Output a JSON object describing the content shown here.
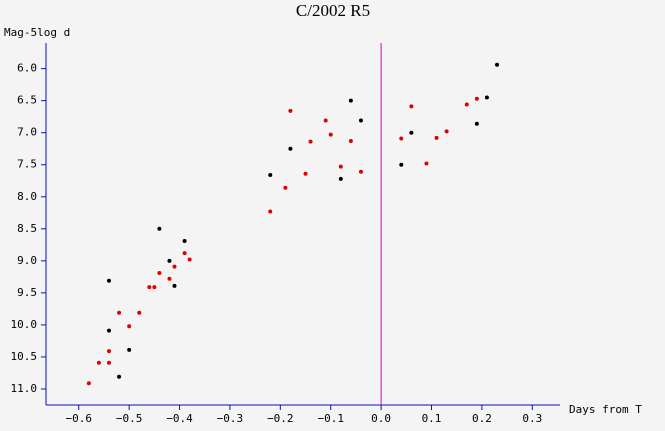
{
  "chart_data": {
    "type": "scatter",
    "title": "C/2002 R5",
    "y_label": "Mag-5log d",
    "x_label": "Days from T",
    "xlim": [
      -0.665,
      0.355
    ],
    "ylim": [
      11.25,
      5.6
    ],
    "y_inverted": true,
    "xticks": [
      {
        "value": -0.6,
        "label": "−0.6"
      },
      {
        "value": -0.5,
        "label": "−0.5"
      },
      {
        "value": -0.4,
        "label": "−0.4"
      },
      {
        "value": -0.3,
        "label": "−0.3"
      },
      {
        "value": -0.2,
        "label": "−0.2"
      },
      {
        "value": -0.1,
        "label": "−0.1"
      },
      {
        "value": 0,
        "label": "0.0"
      },
      0.1,
      0.2,
      0.3
    ],
    "yticks": [
      {
        "value": 6,
        "label": "6.0"
      },
      6.5,
      {
        "value": 7,
        "label": "7.0"
      },
      7.5,
      {
        "value": 8,
        "label": "8.0"
      },
      8.5,
      {
        "value": 9,
        "label": "9.0"
      },
      9.5,
      {
        "value": 10,
        "label": "10.0"
      },
      10.5,
      {
        "value": 11,
        "label": "11.0"
      }
    ],
    "vline_x": 0,
    "vline_color": "#d000d0",
    "axis_color": "#1010b0",
    "series": [
      {
        "color": "#000000",
        "x": [
          0.23,
          0.21,
          0.19,
          0.06,
          0.04,
          -0.06,
          -0.04,
          -0.08,
          -0.18,
          -0.22,
          -0.44,
          -0.39,
          -0.42,
          -0.41,
          -0.54,
          -0.54,
          -0.5,
          -0.52
        ],
        "values": [
          5.94,
          6.45,
          6.86,
          7.0,
          7.5,
          6.5,
          6.81,
          7.72,
          7.25,
          7.66,
          8.5,
          8.69,
          9.0,
          9.39,
          9.31,
          10.09,
          10.39,
          10.81
        ]
      },
      {
        "color": "#e00000",
        "x": [
          -0.58,
          -0.56,
          -0.54,
          -0.54,
          -0.52,
          -0.5,
          -0.48,
          -0.46,
          -0.45,
          -0.44,
          -0.42,
          -0.41,
          -0.39,
          -0.38,
          -0.22,
          -0.19,
          -0.18,
          -0.15,
          -0.14,
          -0.11,
          -0.1,
          -0.08,
          -0.06,
          -0.04,
          0.04,
          0.06,
          0.09,
          0.11,
          0.13,
          0.17,
          0.19
        ],
        "values": [
          10.91,
          10.59,
          10.59,
          10.41,
          9.81,
          10.02,
          9.81,
          9.41,
          9.41,
          9.19,
          9.28,
          9.09,
          8.88,
          8.98,
          8.23,
          7.86,
          6.66,
          7.64,
          7.14,
          6.81,
          7.03,
          7.53,
          7.13,
          7.61,
          7.09,
          6.59,
          7.48,
          7.08,
          6.98,
          6.56,
          6.47
        ]
      }
    ]
  }
}
